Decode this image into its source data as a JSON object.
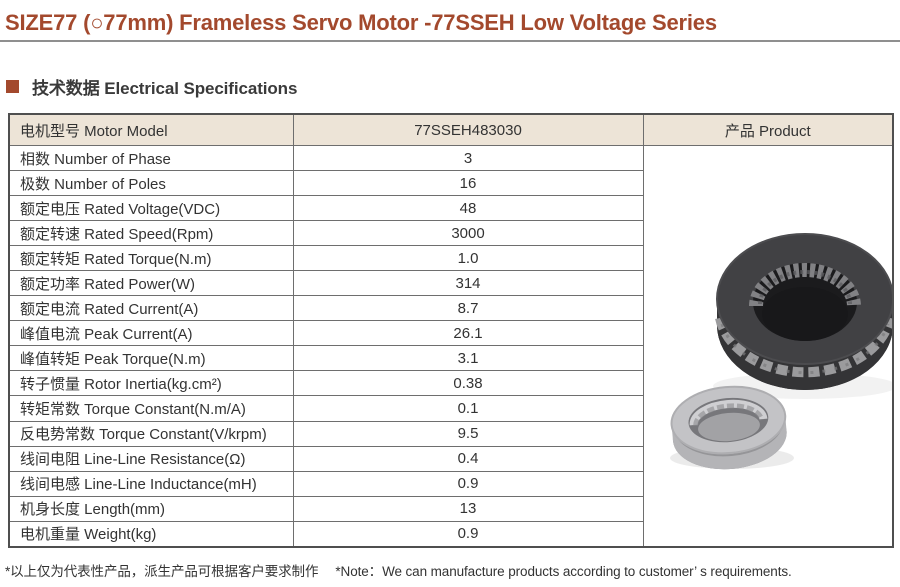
{
  "page": {
    "title": "SIZE77 (○77mm) Frameless Servo Motor -77SSEH Low Voltage Series",
    "section_title": "技术数据 Electrical Specifications",
    "footer_note": "*以上仅为代表性产品，派生产品可根据客户要求制作　 *Note：We can manufacture products according to customer’ s requirements."
  },
  "colors": {
    "accent": "#A3492D",
    "table_header_bg": "#EDE4D7",
    "table_border": "#6E6E6E",
    "outer_border": "#4F4F4F",
    "title_rule": "#8F8F8F",
    "text": "#333333"
  },
  "table": {
    "header": {
      "model_label": "电机型号 Motor Model",
      "model_value": "77SSEH483030",
      "product_label": "产品 Product"
    },
    "rows": [
      {
        "label": "相数 Number of Phase",
        "value": "3"
      },
      {
        "label": "极数 Number of Poles",
        "value": "16"
      },
      {
        "label": "额定电压 Rated Voltage(VDC)",
        "value": "48"
      },
      {
        "label": "额定转速 Rated Speed(Rpm)",
        "value": "3000"
      },
      {
        "label": "额定转矩 Rated Torque(N.m)",
        "value": "1.0"
      },
      {
        "label": "额定功率 Rated Power(W)",
        "value": "314"
      },
      {
        "label": "额定电流 Rated Current(A)",
        "value": "8.7"
      },
      {
        "label": "峰值电流 Peak Current(A)",
        "value": "26.1"
      },
      {
        "label": "峰值转矩 Peak Torque(N.m)",
        "value": "3.1"
      },
      {
        "label": "转子惯量 Rotor Inertia(kg.cm²)",
        "value": "0.38"
      },
      {
        "label": "转矩常数 Torque Constant(N.m/A)",
        "value": "0.1"
      },
      {
        "label": "反电势常数 Torque Constant(V/krpm)",
        "value": "9.5"
      },
      {
        "label": "线间电阻 Line-Line Resistance(Ω)",
        "value": "0.4"
      },
      {
        "label": "线间电感 Line-Line Inductance(mH)",
        "value": "0.9"
      },
      {
        "label": "机身长度 Length(mm)",
        "value": "13"
      },
      {
        "label": "电机重量 Weight(kg)",
        "value": "0.9"
      }
    ]
  },
  "product_image": {
    "name": "stator-rotor-photo",
    "description": "Frameless servo motor stator ring and rotor ring"
  }
}
